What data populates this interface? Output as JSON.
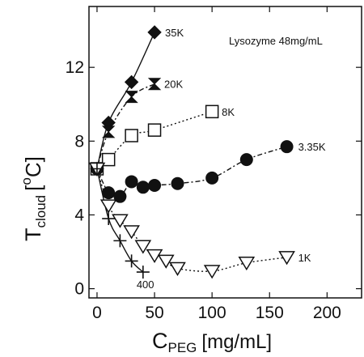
{
  "chart_data": {
    "type": "scatter",
    "title": "",
    "annotation": "Lysozyme 48mg/mL",
    "xlabel": {
      "main": "C",
      "sub": "PEG",
      "unit": "[mg/mL]"
    },
    "ylabel": {
      "main": "T",
      "sub": "cloud",
      "unit_open": "[",
      "sup": "o",
      "unit_close": "C]"
    },
    "xlim": [
      -7,
      230
    ],
    "ylim": [
      -0.5,
      15.3
    ],
    "xticks": [
      0,
      50,
      100,
      150,
      200
    ],
    "yticks": [
      0,
      4,
      8,
      12
    ],
    "grid": false,
    "series": [
      {
        "name": "35K",
        "marker": "diamond-filled",
        "line": "solid",
        "x": [
          0,
          10,
          30,
          50
        ],
        "y": [
          6.5,
          9.0,
          11.2,
          13.9
        ]
      },
      {
        "name": "20K",
        "marker": "bowtie-filled",
        "line": "dashdot",
        "x": [
          0,
          10,
          30,
          50
        ],
        "y": [
          6.5,
          8.5,
          10.4,
          11.1
        ]
      },
      {
        "name": "8K",
        "marker": "square-open",
        "line": "dotted",
        "x": [
          0,
          10,
          30,
          50,
          100
        ],
        "y": [
          6.5,
          7.0,
          8.3,
          8.6,
          9.6
        ]
      },
      {
        "name": "3.35K",
        "marker": "circle-filled",
        "line": "dashdot",
        "x": [
          0,
          10,
          20,
          30,
          40,
          50,
          70,
          100,
          130,
          165
        ],
        "y": [
          6.5,
          5.2,
          5.0,
          5.8,
          5.5,
          5.6,
          5.7,
          6.0,
          7.0,
          7.7
        ]
      },
      {
        "name": "1K",
        "marker": "triangle-down-open",
        "line": "dotted",
        "x": [
          0,
          10,
          20,
          30,
          40,
          50,
          60,
          70,
          100,
          130,
          165
        ],
        "y": [
          6.5,
          4.5,
          3.7,
          3.1,
          2.3,
          1.8,
          1.5,
          1.1,
          0.95,
          1.4,
          1.7
        ]
      },
      {
        "name": "400",
        "marker": "plus",
        "line": "solid",
        "x": [
          0,
          10,
          20,
          30,
          40
        ],
        "y": [
          6.5,
          3.8,
          2.6,
          1.5,
          0.9
        ]
      }
    ]
  }
}
